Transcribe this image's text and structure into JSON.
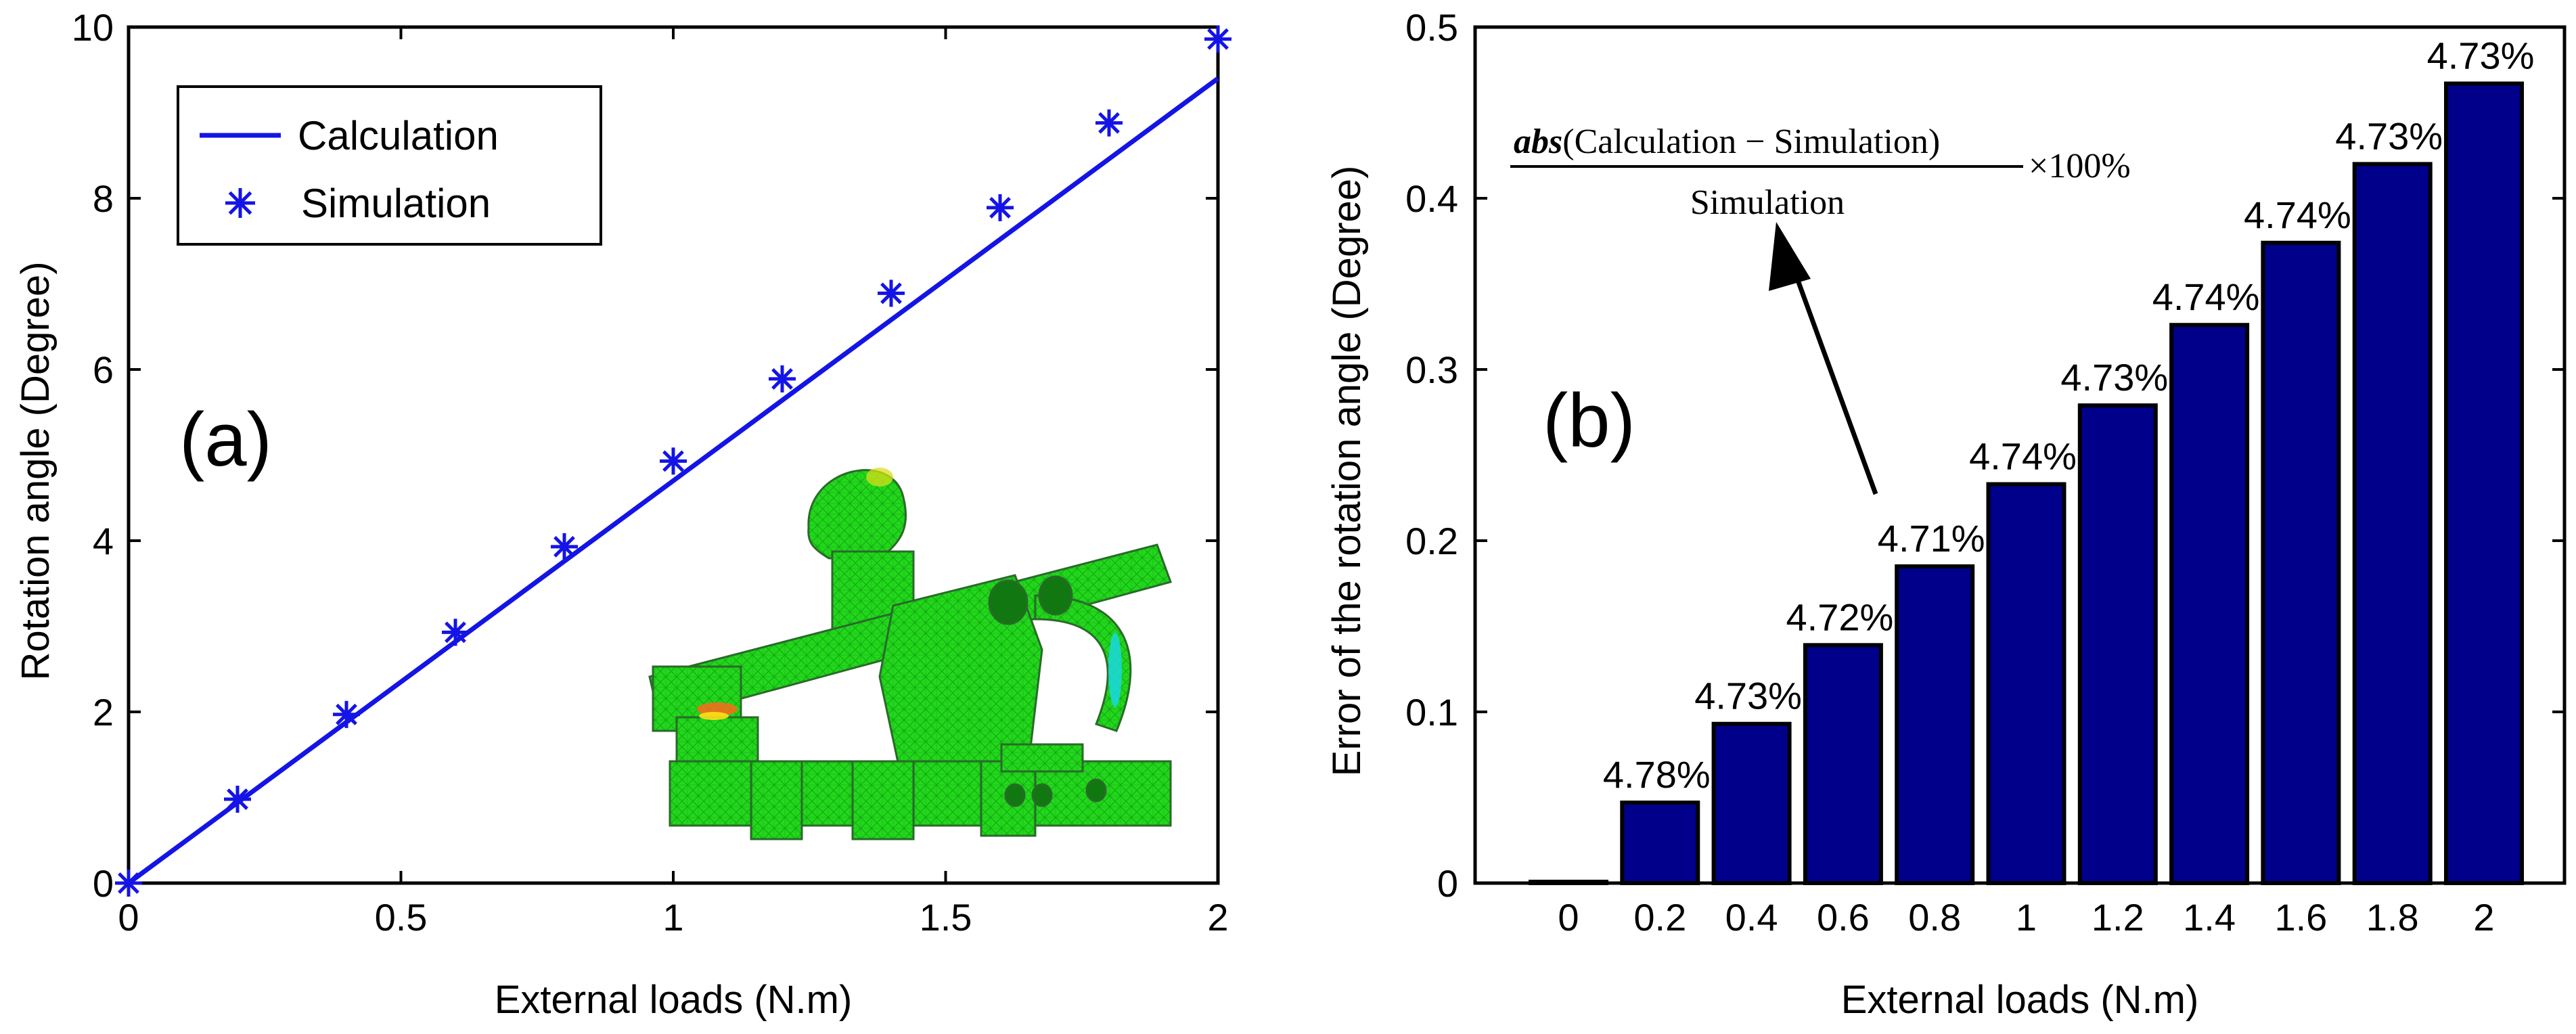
{
  "chart_data": [
    {
      "type": "line",
      "panel_label": "(a)",
      "xlabel": "External loads (N.m)",
      "ylabel": "Rotation angle (Degree)",
      "xlim": [
        0,
        2
      ],
      "ylim": [
        0,
        10
      ],
      "xticks": [
        0,
        0.5,
        1,
        1.5,
        2
      ],
      "xtick_labels": [
        "0",
        "0.5",
        "1",
        "1.5",
        "2"
      ],
      "yticks": [
        0,
        2,
        4,
        6,
        8,
        10
      ],
      "ytick_labels": [
        "0",
        "2",
        "4",
        "6",
        "8",
        "10"
      ],
      "grid": false,
      "legend_position": "top-left",
      "series": [
        {
          "name": "Calculation",
          "style": "line",
          "color": "#1414e6",
          "x": [
            0,
            2
          ],
          "y": [
            0,
            9.4
          ]
        },
        {
          "name": "Simulation",
          "style": "marker-star",
          "color": "#1414e6",
          "x": [
            0,
            0.2,
            0.4,
            0.6,
            0.8,
            1.0,
            1.2,
            1.4,
            1.6,
            1.8,
            2.0
          ],
          "y": [
            0,
            0.98,
            1.97,
            2.93,
            3.93,
            4.93,
            5.89,
            6.89,
            7.89,
            8.88,
            9.86
          ]
        }
      ],
      "inset": "finite-element-mesh-model"
    },
    {
      "type": "bar",
      "panel_label": "(b)",
      "xlabel": "External loads (N.m)",
      "ylabel": "Error of the rotation angle (Degree)",
      "categories": [
        "0",
        "0.2",
        "0.4",
        "0.6",
        "0.8",
        "1",
        "1.2",
        "1.4",
        "1.6",
        "1.8",
        "2"
      ],
      "values": [
        0,
        0.047,
        0.093,
        0.139,
        0.185,
        0.233,
        0.279,
        0.326,
        0.374,
        0.42,
        0.467
      ],
      "data_labels": [
        "",
        "4.78%",
        "4.73%",
        "4.72%",
        "4.71%",
        "4.74%",
        "4.73%",
        "4.74%",
        "4.74%",
        "4.73%",
        "4.73%"
      ],
      "ylim": [
        0,
        0.5
      ],
      "yticks": [
        0,
        0.1,
        0.2,
        0.3,
        0.4,
        0.5
      ],
      "ytick_labels": [
        "0",
        "0.1",
        "0.2",
        "0.3",
        "0.4",
        "0.5"
      ],
      "bar_color": "#00008b",
      "annotation": {
        "numerator_abs": "abs",
        "numerator_rest": "(Calculation − Simulation)",
        "denominator": "Simulation",
        "suffix": "×100%"
      }
    }
  ]
}
